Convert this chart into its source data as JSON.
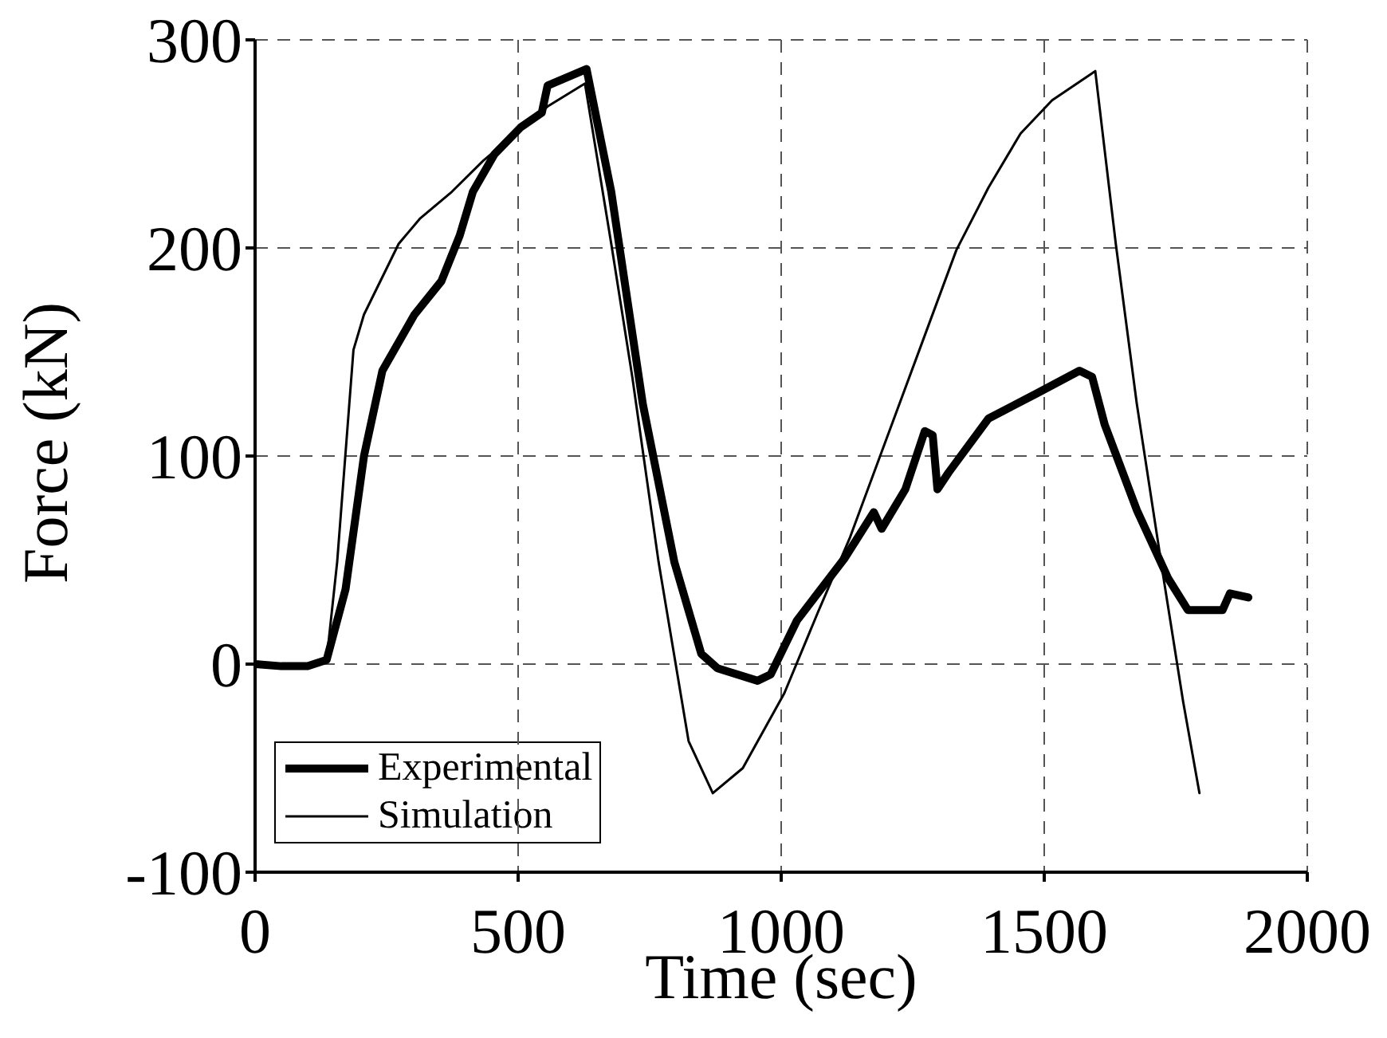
{
  "chart_data": {
    "type": "line",
    "xlabel": "Time (sec)",
    "ylabel": "Force (kN)",
    "xlim": [
      0,
      2000
    ],
    "xticks": [
      0,
      500,
      1000,
      1500,
      2000
    ],
    "ylim": [
      -100,
      300
    ],
    "yticks": [
      -100,
      0,
      100,
      200,
      300
    ],
    "grid": true,
    "legend": "bottom left",
    "marker": "none",
    "line_style": "solid",
    "series": [
      {
        "name": "Experimental",
        "color": "#000000",
        "x": [
          0,
          50,
          100,
          136,
          172,
          207,
          242,
          303,
          354,
          389,
          414,
          455,
          505,
          545,
          556,
          630,
          677,
          737,
          797,
          848,
          879,
          955,
          980,
          1030,
          1121,
          1176,
          1191,
          1236,
          1273,
          1288,
          1297,
          1318,
          1394,
          1485,
          1567,
          1591,
          1615,
          1676,
          1736,
          1773,
          1839,
          1853,
          1888
        ],
        "values": [
          0,
          -1,
          -1,
          2,
          36,
          100,
          141,
          168,
          184,
          206,
          227,
          245,
          258,
          265,
          278,
          286,
          227,
          125,
          49,
          5,
          -2,
          -8,
          -5,
          21,
          51,
          73,
          65,
          84,
          112,
          110,
          84,
          92,
          118,
          130,
          141,
          138,
          115,
          74,
          41,
          26,
          26,
          34,
          32
        ]
      },
      {
        "name": "Simulation",
        "color": "#000000",
        "x": [
          0,
          50,
          100,
          136,
          156,
          187,
          207,
          273,
          313,
          374,
          434,
          495,
          556,
          627,
          677,
          717,
          767,
          824,
          870,
          927,
          1006,
          1070,
          1131,
          1191,
          1273,
          1333,
          1394,
          1455,
          1515,
          1597,
          1636,
          1676,
          1727,
          1764,
          1795
        ],
        "values": [
          0,
          -1,
          -1,
          2,
          49,
          151,
          168,
          202,
          214,
          227,
          242,
          255,
          268,
          279,
          202,
          138,
          49,
          -37,
          -62,
          -50,
          -14,
          25,
          61,
          102,
          158,
          199,
          229,
          255,
          271,
          285,
          202,
          125,
          41,
          -18,
          -62
        ]
      }
    ]
  }
}
